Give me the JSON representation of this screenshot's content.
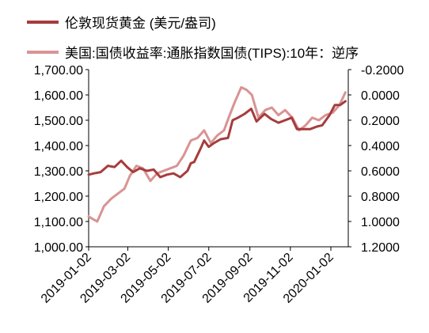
{
  "chart_data": {
    "type": "line",
    "legend": [
      {
        "name": "伦敦现货黄金 (美元/盎司)",
        "color": "#a63c3c"
      },
      {
        "name": "美国:国债收益率:通胀指数国债(TIPS):10年：逆序",
        "color": "#d99393"
      }
    ],
    "x_ticks": [
      "2019-01-02",
      "2019-03-02",
      "2019-05-02",
      "2019-07-02",
      "2019-09-02",
      "2019-11-02",
      "2020-01-02"
    ],
    "y_left": {
      "ylim": [
        1000,
        1700
      ],
      "ticks": [
        "1,000.00",
        "1,100.00",
        "1,200.00",
        "1,300.00",
        "1,400.00",
        "1,500.00",
        "1,600.00",
        "1,700.00"
      ]
    },
    "y_right": {
      "ylim": [
        1.2,
        -0.2
      ],
      "ticks": [
        "1.2000",
        "1.0000",
        "0.8000",
        "0.6000",
        "0.4000",
        "0.2000",
        "0.0000",
        "-0.2000"
      ],
      "inverted": true
    },
    "series": [
      {
        "name": "伦敦现货黄金 (美元/盎司)",
        "axis": "left",
        "color": "#a63c3c",
        "dates": [
          "2019-01-02",
          "2019-01-10",
          "2019-01-20",
          "2019-01-31",
          "2019-02-10",
          "2019-02-20",
          "2019-03-01",
          "2019-03-10",
          "2019-03-20",
          "2019-03-31",
          "2019-04-10",
          "2019-04-20",
          "2019-04-30",
          "2019-05-10",
          "2019-05-20",
          "2019-05-31",
          "2019-06-05",
          "2019-06-10",
          "2019-06-20",
          "2019-06-25",
          "2019-07-02",
          "2019-07-10",
          "2019-07-20",
          "2019-07-31",
          "2019-08-07",
          "2019-08-15",
          "2019-08-25",
          "2019-09-04",
          "2019-09-12",
          "2019-09-24",
          "2019-10-04",
          "2019-10-15",
          "2019-10-25",
          "2019-11-04",
          "2019-11-12",
          "2019-11-22",
          "2019-12-02",
          "2019-12-12",
          "2019-12-20",
          "2019-12-31",
          "2020-01-08",
          "2020-01-16",
          "2020-01-24"
        ],
        "values": [
          1285,
          1290,
          1295,
          1320,
          1315,
          1340,
          1315,
          1295,
          1310,
          1300,
          1305,
          1275,
          1285,
          1290,
          1275,
          1300,
          1330,
          1335,
          1390,
          1420,
          1395,
          1410,
          1425,
          1430,
          1500,
          1510,
          1525,
          1545,
          1495,
          1525,
          1505,
          1490,
          1500,
          1510,
          1465,
          1465,
          1465,
          1475,
          1480,
          1520,
          1560,
          1560,
          1575
        ]
      },
      {
        "name": "美国:国债收益率:通胀指数国债(TIPS):10年：逆序",
        "axis": "right",
        "color": "#d99393",
        "dates": [
          "2019-01-02",
          "2019-01-08",
          "2019-01-15",
          "2019-01-25",
          "2019-02-05",
          "2019-02-15",
          "2019-02-25",
          "2019-03-05",
          "2019-03-15",
          "2019-03-25",
          "2019-04-05",
          "2019-04-15",
          "2019-04-25",
          "2019-05-05",
          "2019-05-15",
          "2019-05-25",
          "2019-06-05",
          "2019-06-15",
          "2019-06-25",
          "2019-07-05",
          "2019-07-15",
          "2019-07-25",
          "2019-08-01",
          "2019-08-10",
          "2019-08-20",
          "2019-08-28",
          "2019-09-05",
          "2019-09-15",
          "2019-09-25",
          "2019-10-05",
          "2019-10-15",
          "2019-10-25",
          "2019-11-05",
          "2019-11-15",
          "2019-11-25",
          "2019-12-05",
          "2019-12-15",
          "2019-12-25",
          "2020-01-05",
          "2020-01-15",
          "2020-01-24"
        ],
        "values": [
          0.96,
          0.98,
          1.0,
          0.88,
          0.82,
          0.78,
          0.74,
          0.64,
          0.56,
          0.58,
          0.68,
          0.62,
          0.6,
          0.58,
          0.56,
          0.48,
          0.36,
          0.34,
          0.28,
          0.38,
          0.32,
          0.28,
          0.18,
          0.06,
          -0.06,
          -0.04,
          0.0,
          0.18,
          0.12,
          0.1,
          0.16,
          0.12,
          0.18,
          0.28,
          0.24,
          0.18,
          0.2,
          0.16,
          0.14,
          0.08,
          -0.02
        ]
      }
    ]
  }
}
